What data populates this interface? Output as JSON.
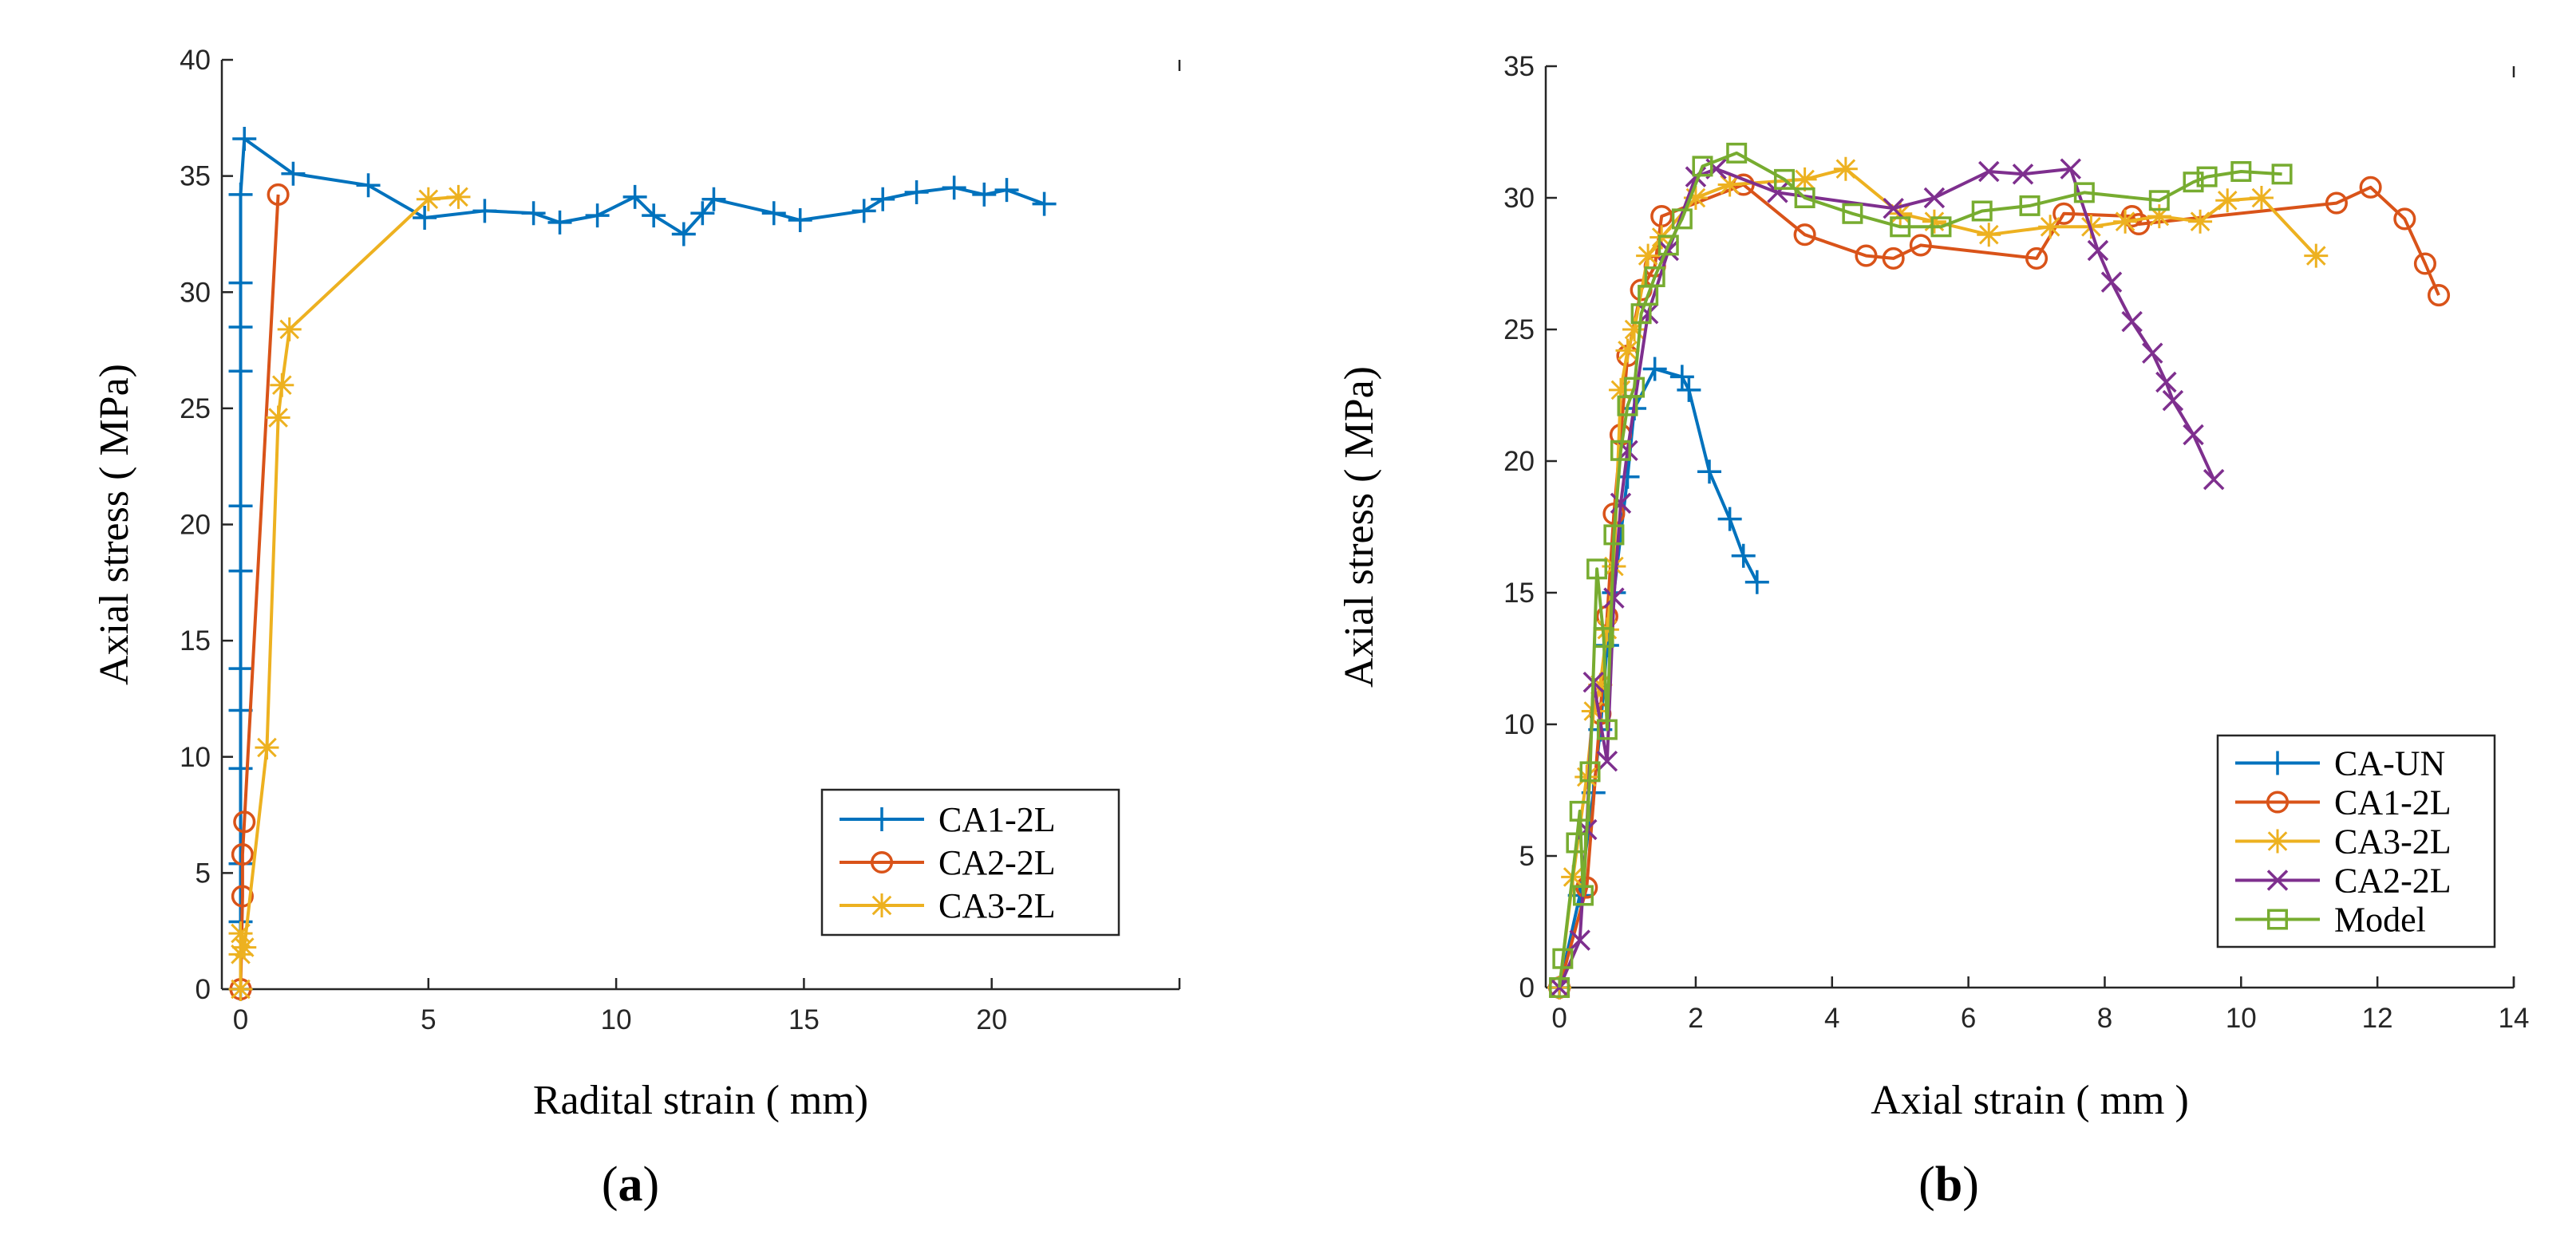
{
  "chart_data": [
    {
      "id": "a",
      "type": "line",
      "panel_label": "a",
      "xlabel": "Radital strain ( mm)",
      "ylabel": "Axial stress ( MPa)",
      "xlim": [
        -0.5,
        25
      ],
      "ylim": [
        0,
        40
      ],
      "xticks": [
        0,
        5,
        10,
        15,
        20
      ],
      "yticks": [
        0,
        5,
        10,
        15,
        20,
        25,
        30,
        35,
        40
      ],
      "legend_position": "bottom-right",
      "series": [
        {
          "name": "CA1-2L",
          "color": "#0072BD",
          "marker": "plus",
          "x": [
            0,
            0,
            0,
            0,
            0,
            0,
            0,
            0,
            0,
            0,
            0,
            0,
            0.1,
            1.4,
            3.4,
            4.9,
            6.5,
            7.8,
            8.5,
            9.5,
            10.5,
            11,
            11.8,
            12.3,
            12.6,
            14.2,
            14.9,
            16.6,
            17.1,
            18,
            19,
            19.8,
            20.4,
            21.4
          ],
          "y": [
            0,
            2.9,
            5.4,
            9.5,
            12,
            13.8,
            18,
            20.8,
            26.6,
            28.5,
            30.4,
            34.2,
            36.6,
            35.1,
            34.6,
            33.2,
            33.5,
            33.4,
            33,
            33.3,
            34.1,
            33.3,
            32.5,
            33.4,
            34,
            33.4,
            33.1,
            33.5,
            34,
            34.3,
            34.5,
            34.2,
            34.4,
            33.8
          ]
        },
        {
          "name": "CA2-2L",
          "color": "#D95319",
          "marker": "circle",
          "x": [
            0,
            0.05,
            0.05,
            0.1,
            1.0
          ],
          "y": [
            0,
            4,
            5.8,
            7.2,
            34.2
          ]
        },
        {
          "name": "CA3-2L",
          "color": "#EDB120",
          "marker": "star",
          "x": [
            0,
            0,
            0,
            0.1,
            0.7,
            1.0,
            1.1,
            1.3,
            5.0,
            5.8
          ],
          "y": [
            0,
            1.5,
            2.4,
            1.8,
            10.4,
            24.6,
            26,
            28.4,
            34,
            34.1
          ]
        }
      ]
    },
    {
      "id": "b",
      "type": "line",
      "panel_label": "b",
      "xlabel": "Axial strain ( mm )",
      "ylabel": "Axial stress ( MPa)",
      "xlim": [
        -0.2,
        14
      ],
      "ylim": [
        0,
        35
      ],
      "xticks": [
        0,
        2,
        4,
        6,
        8,
        10,
        12,
        14
      ],
      "yticks": [
        0,
        5,
        10,
        15,
        20,
        25,
        30,
        35
      ],
      "legend_position": "bottom-right",
      "series": [
        {
          "name": "CA-UN",
          "color": "#0072BD",
          "marker": "plus",
          "x": [
            0,
            0.3,
            0.5,
            0.6,
            0.7,
            0.8,
            1.0,
            1.1,
            1.4,
            1.8,
            1.9,
            2.2,
            2.5,
            2.7,
            2.9
          ],
          "y": [
            0,
            3.5,
            7.4,
            9.8,
            13,
            15,
            19.4,
            22,
            23.5,
            23.2,
            22.7,
            19.6,
            17.8,
            16.4,
            15.4
          ]
        },
        {
          "name": "CA1-2L",
          "color": "#D95319",
          "marker": "circle",
          "x": [
            0,
            0.4,
            0.6,
            0.7,
            0.8,
            0.9,
            1.0,
            1.2,
            1.4,
            1.5,
            2.7,
            3.6,
            4.5,
            4.9,
            5.3,
            7.0,
            7.4,
            8.4,
            8.5,
            11.4,
            11.9,
            12.4,
            12.7,
            12.9
          ],
          "y": [
            0,
            3.8,
            10.4,
            14.1,
            18,
            21,
            24,
            26.5,
            27.4,
            29.3,
            30.5,
            28.6,
            27.8,
            27.7,
            28.2,
            27.7,
            29.4,
            29.3,
            29,
            29.8,
            30.4,
            29.2,
            27.5,
            26.3
          ]
        },
        {
          "name": "CA3-2L",
          "color": "#EDB120",
          "marker": "star",
          "x": [
            0,
            0.2,
            0.4,
            0.5,
            0.6,
            0.7,
            0.8,
            0.9,
            1.0,
            1.1,
            1.3,
            1.5,
            2.0,
            2.5,
            3.6,
            4.2,
            5.0,
            5.5,
            6.3,
            7.2,
            7.8,
            8.3,
            8.8,
            9.4,
            9.8,
            10.3,
            11.1
          ],
          "y": [
            0,
            4.2,
            8,
            10.5,
            11.5,
            13.6,
            16,
            22.7,
            24.2,
            25,
            27.8,
            28.5,
            30,
            30.5,
            30.7,
            31.1,
            29.4,
            29.1,
            28.6,
            28.9,
            28.9,
            29.1,
            29.3,
            29.1,
            29.9,
            30,
            27.8
          ]
        },
        {
          "name": "CA2-2L",
          "color": "#7E2F8E",
          "marker": "x",
          "x": [
            0,
            0.3,
            0.4,
            0.5,
            0.7,
            0.8,
            0.9,
            1.0,
            1.3,
            1.6,
            2.0,
            2.3,
            3.2,
            4.9,
            5.5,
            6.3,
            6.8,
            7.5,
            7.9,
            8.1,
            8.4,
            8.7,
            8.9,
            9.0,
            9.3,
            9.6
          ],
          "y": [
            0,
            1.8,
            6,
            11.6,
            8.6,
            14.8,
            18.4,
            20.4,
            25.6,
            28,
            30.8,
            31.1,
            30.2,
            29.6,
            30,
            31,
            30.9,
            31.1,
            28,
            26.8,
            25.3,
            24.1,
            23,
            22.3,
            21,
            19.3
          ]
        },
        {
          "name": "Model",
          "color": "#77AC30",
          "marker": "square",
          "x": [
            0,
            0.05,
            0.25,
            0.3,
            0.35,
            0.45,
            0.55,
            0.65,
            0.7,
            0.8,
            0.9,
            1.0,
            1.1,
            1.2,
            1.3,
            1.4,
            1.6,
            1.8,
            2.1,
            2.6,
            3.3,
            3.6,
            4.3,
            5.0,
            5.6,
            6.2,
            6.9,
            7.7,
            8.8,
            9.3,
            9.5,
            10.0,
            10.6
          ],
          "y": [
            0,
            1.1,
            5.5,
            6.7,
            3.5,
            8.2,
            15.9,
            13.3,
            9.8,
            17.2,
            20.4,
            22.1,
            22.8,
            25.6,
            26.3,
            27,
            28.2,
            29.2,
            31.2,
            31.7,
            30.7,
            30,
            29.4,
            28.9,
            28.9,
            29.5,
            29.7,
            30.2,
            29.9,
            30.6,
            30.8,
            31,
            30.9
          ]
        }
      ]
    }
  ]
}
